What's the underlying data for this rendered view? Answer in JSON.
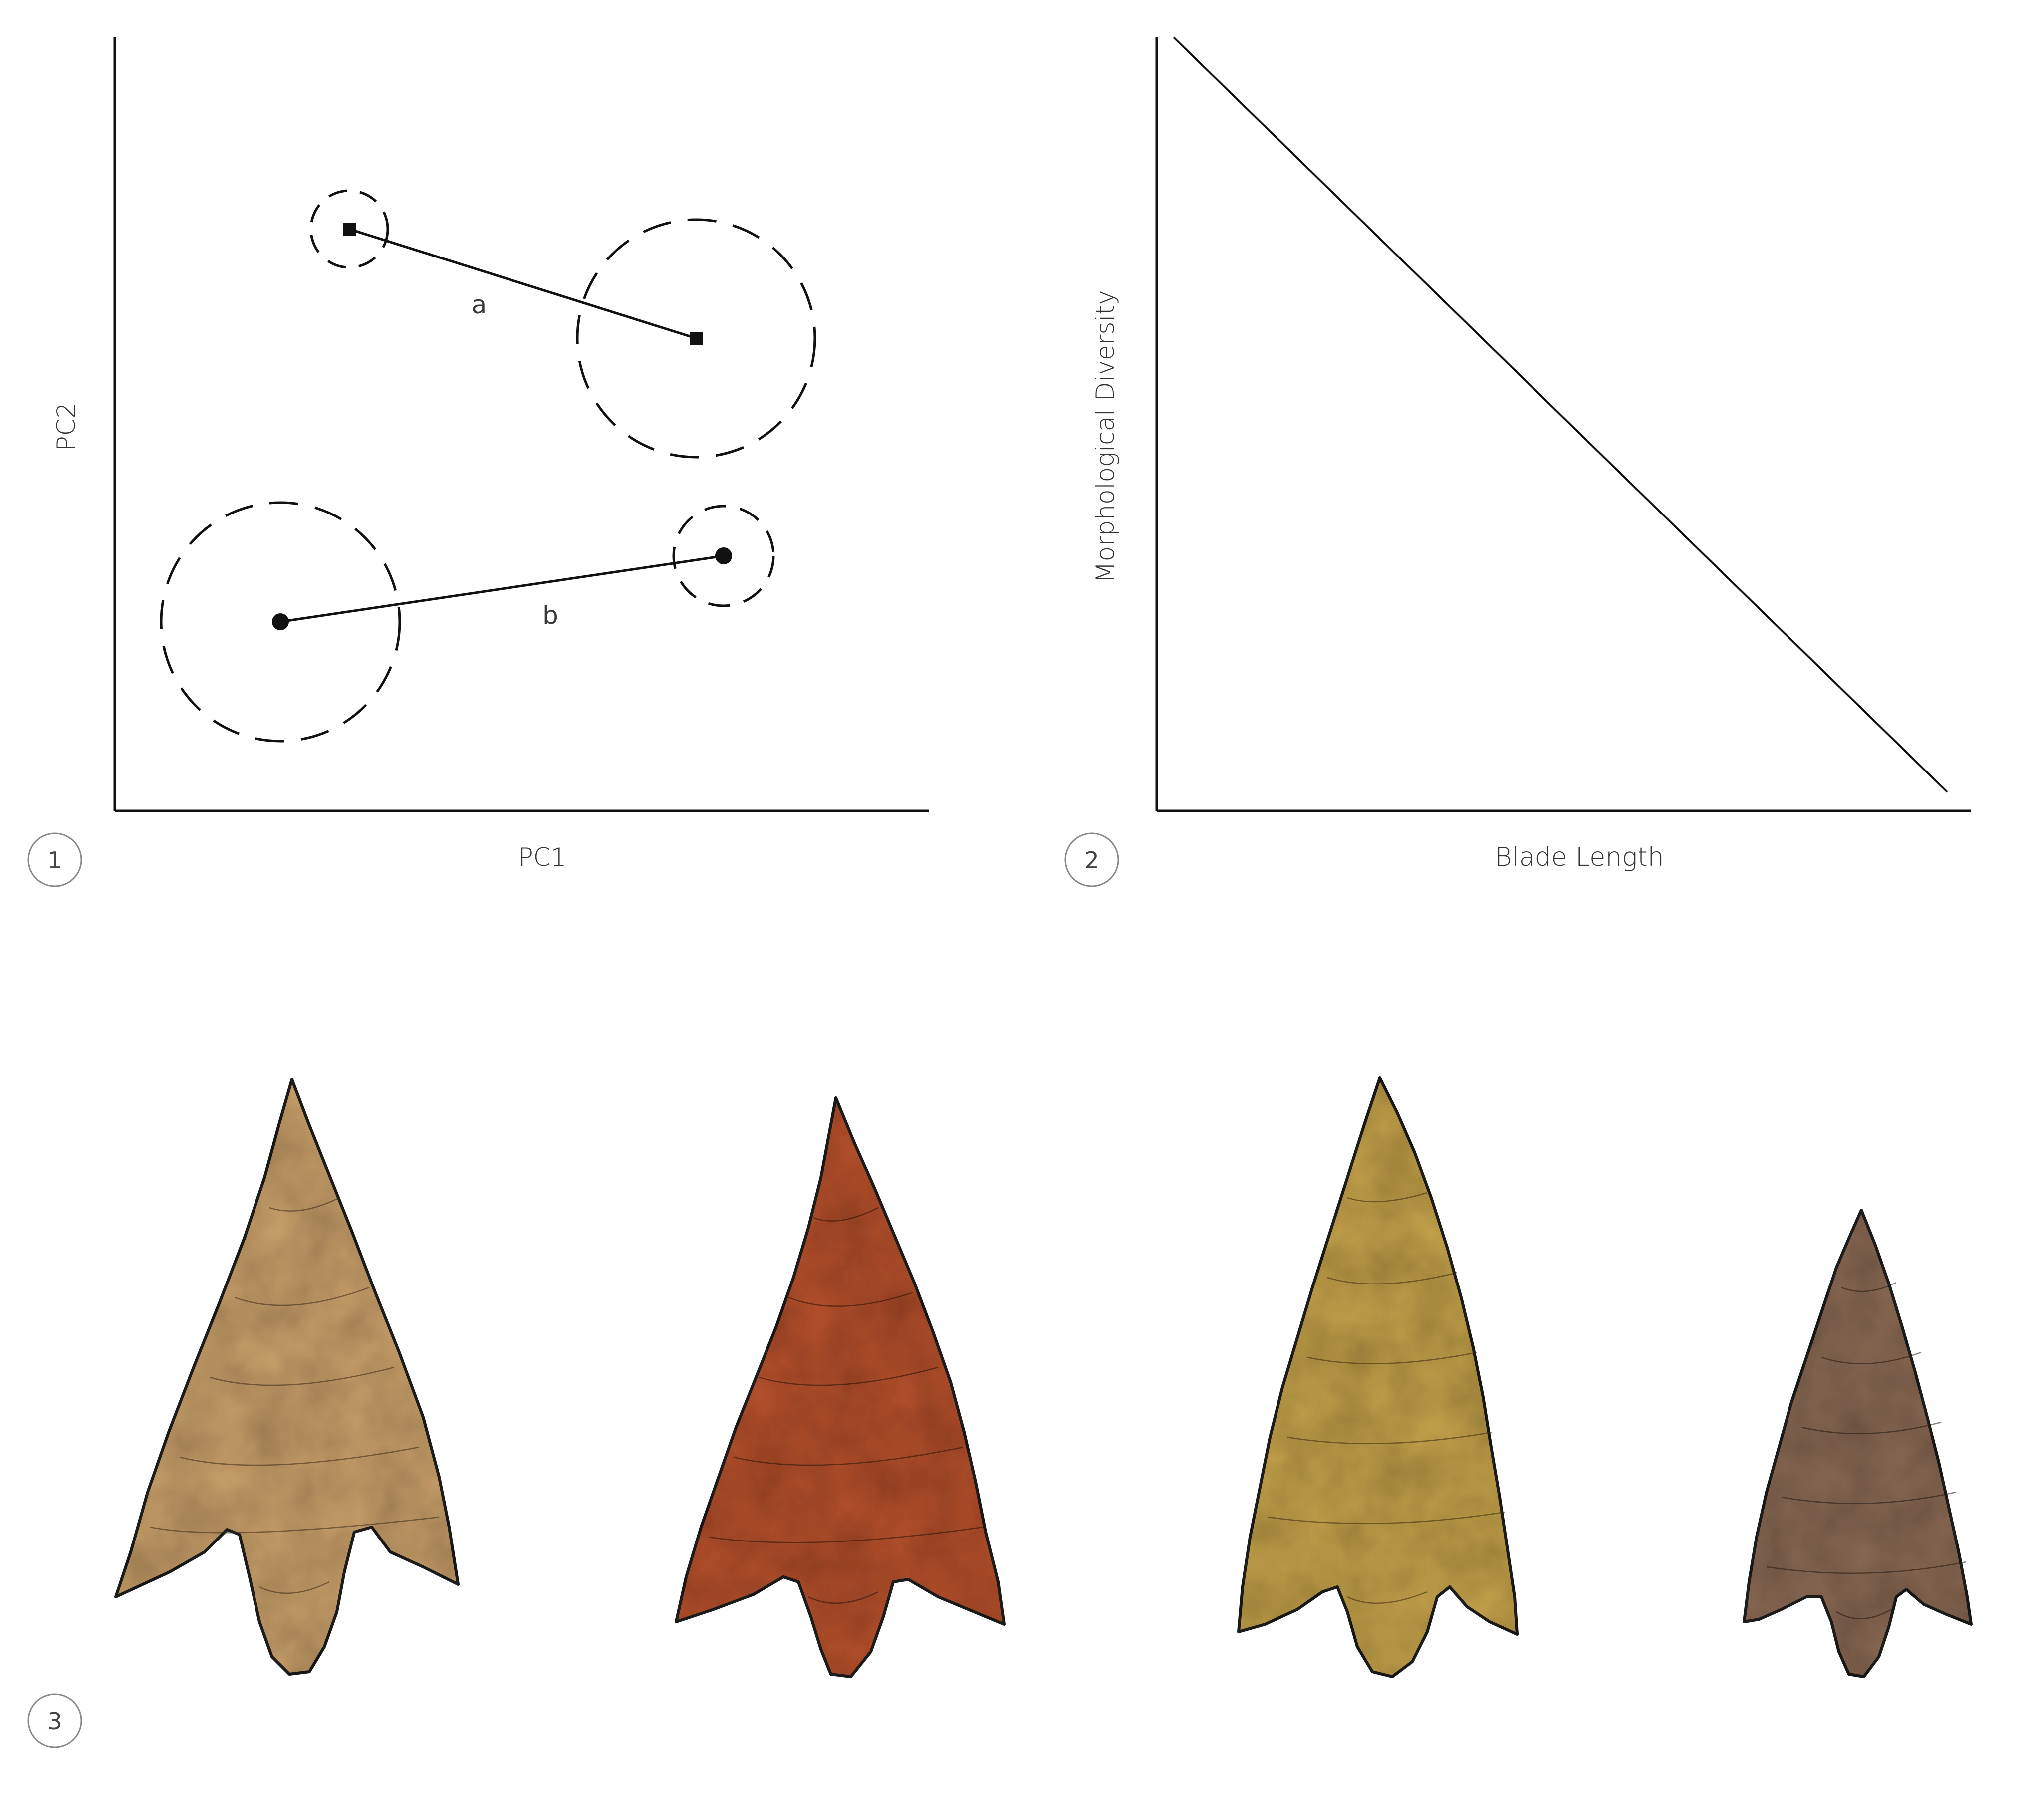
{
  "panels": {
    "p1": {
      "number": "1",
      "xlabel": "PC1",
      "ylabel": "PC2",
      "segment_a_label": "a",
      "segment_b_label": "b",
      "legend_shapes": [
        "square",
        "circle"
      ]
    },
    "p2": {
      "number": "2",
      "xlabel": "Blade Length",
      "ylabel": "Morphological Diversity",
      "trend": "negative linear"
    },
    "p3": {
      "number": "3",
      "points": [
        {
          "name": "arrowhead-1",
          "colors": [
            "#c9a06a",
            "#b89060",
            "#d6b582"
          ]
        },
        {
          "name": "arrowhead-2",
          "colors": [
            "#b5512e",
            "#c26a33",
            "#d99a4a"
          ]
        },
        {
          "name": "arrowhead-3",
          "colors": [
            "#c4a24c",
            "#b8953f",
            "#d7bb6a"
          ]
        },
        {
          "name": "arrowhead-4",
          "colors": [
            "#8a6a55",
            "#7a7358",
            "#a06a55"
          ]
        }
      ]
    }
  },
  "colors": {
    "line": "#111111",
    "circle_outline": "#999999"
  }
}
